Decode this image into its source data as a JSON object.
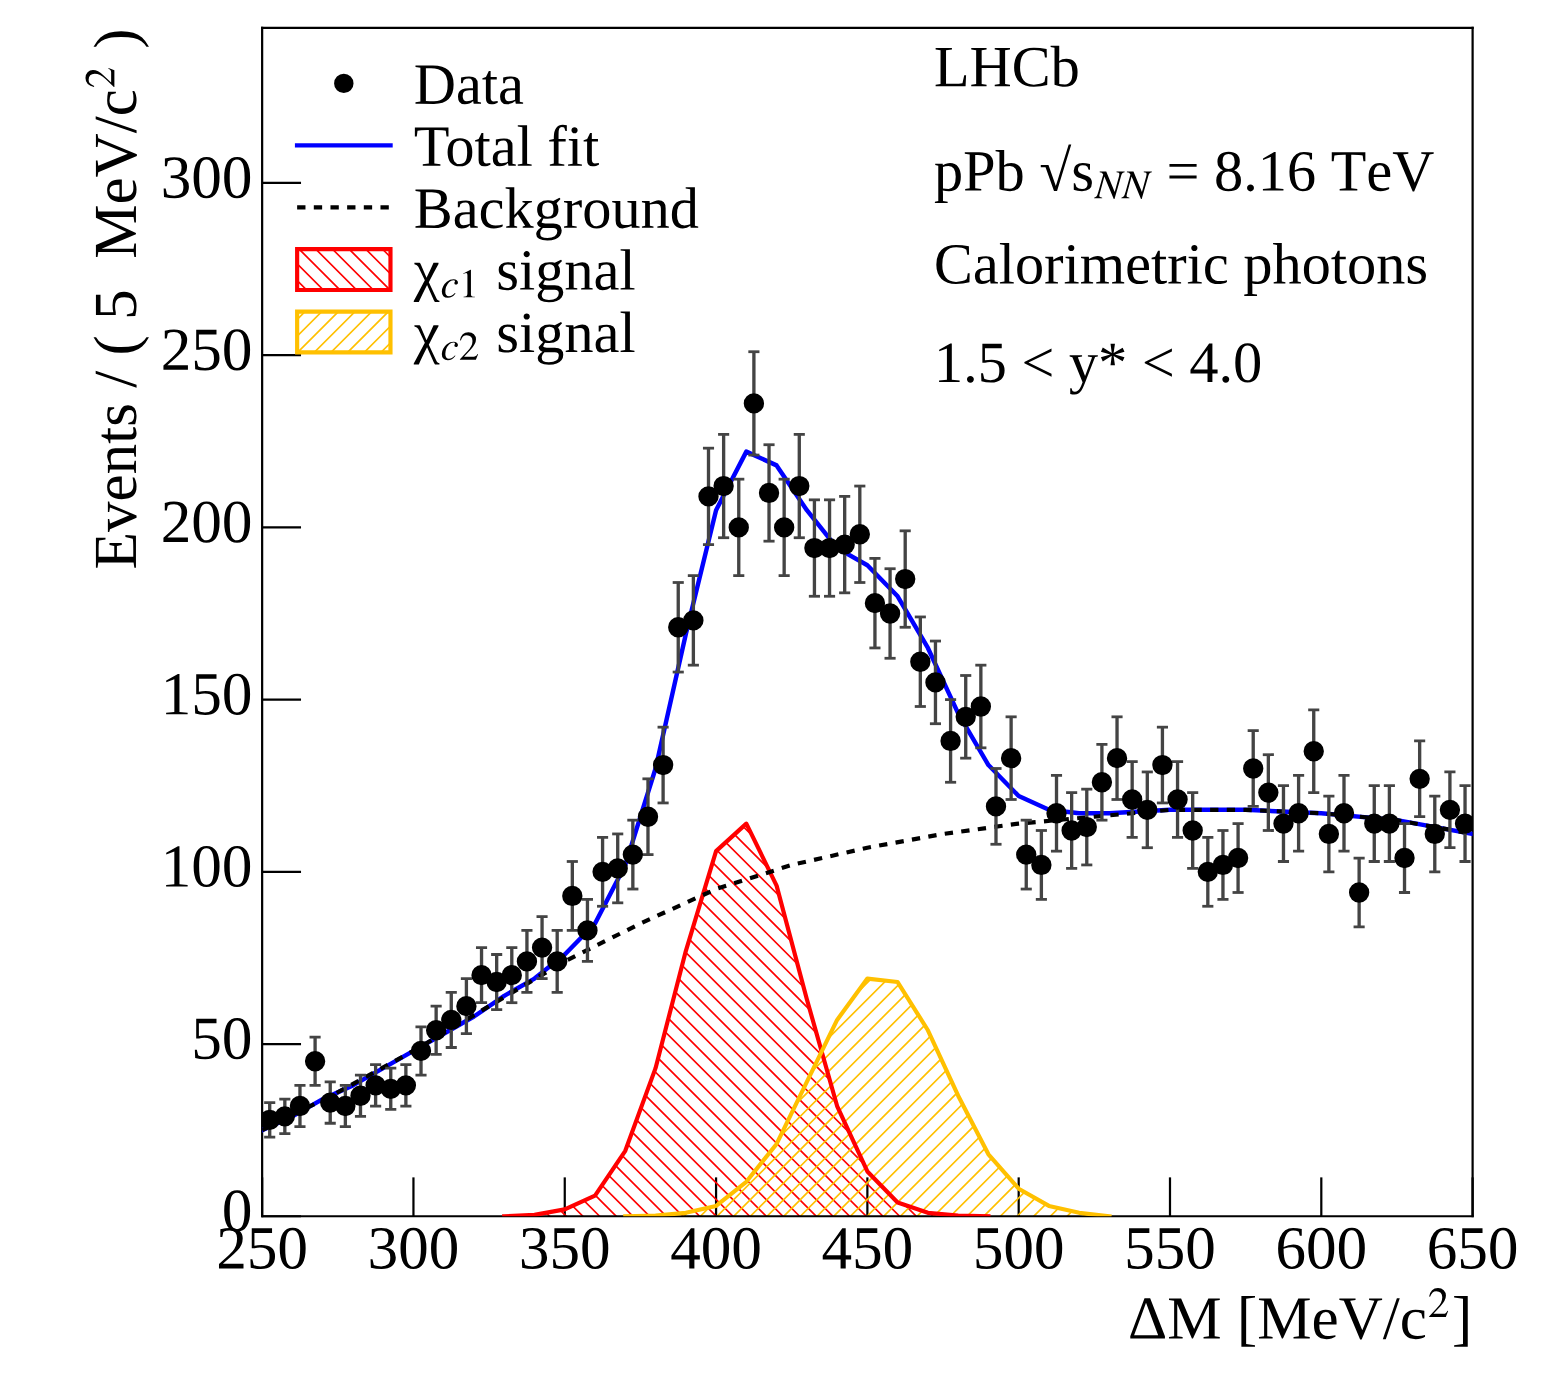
{
  "chart_data": {
    "type": "scatter",
    "xlabel": "ΔM [MeV/c$^{2}$]",
    "ylabel": "Events / ( 5  MeV/c$^{2}$ )",
    "xlim": [
      250,
      650
    ],
    "ylim": [
      0,
      345
    ],
    "xticks": [
      250,
      300,
      350,
      400,
      450,
      500,
      550,
      600,
      650
    ],
    "yticks": [
      0,
      50,
      100,
      150,
      200,
      250,
      300
    ],
    "grid": false,
    "legend": "top left",
    "annotations": [
      "LHCb",
      "pPb √s$_{NN}$ = 8.16 TeV",
      "Calorimetric photons",
      "1.5 < y* < 4.0"
    ],
    "series": [
      {
        "name": "Data",
        "marker": "circle",
        "color": "#000000",
        "x": [
          252.5,
          257.5,
          262.5,
          267.5,
          272.5,
          277.5,
          282.5,
          287.5,
          292.5,
          297.5,
          302.5,
          307.5,
          312.5,
          317.5,
          322.5,
          327.5,
          332.5,
          337.5,
          342.5,
          347.5,
          352.5,
          357.5,
          362.5,
          367.5,
          372.5,
          377.5,
          382.5,
          387.5,
          392.5,
          397.5,
          402.5,
          407.5,
          412.5,
          417.5,
          422.5,
          427.5,
          432.5,
          437.5,
          442.5,
          447.5,
          452.5,
          457.5,
          462.5,
          467.5,
          472.5,
          477.5,
          482.5,
          487.5,
          492.5,
          497.5,
          502.5,
          507.5,
          512.5,
          517.5,
          522.5,
          527.5,
          532.5,
          537.5,
          542.5,
          547.5,
          552.5,
          557.5,
          562.5,
          567.5,
          572.5,
          577.5,
          582.5,
          587.5,
          592.5,
          597.5,
          602.5,
          607.5,
          612.5,
          617.5,
          622.5,
          627.5,
          632.5,
          637.5,
          642.5,
          647.5
        ],
        "values": [
          28,
          29,
          32,
          45,
          33,
          32,
          35,
          38,
          37,
          38,
          48,
          54,
          57,
          61,
          70,
          68,
          70,
          74,
          78,
          74,
          93,
          83,
          100,
          101,
          105,
          116,
          131,
          171,
          173,
          209,
          212,
          200,
          236,
          210,
          200,
          212,
          194,
          194,
          195,
          198,
          178,
          175,
          185,
          161,
          155,
          138,
          145,
          148,
          119,
          133,
          105,
          102,
          117,
          112,
          113,
          126,
          133,
          121,
          118,
          131,
          121,
          112,
          100,
          102,
          104,
          130,
          123,
          114,
          117,
          135,
          111,
          117,
          94,
          114,
          114,
          104,
          127,
          111,
          118,
          114
        ],
        "errors": [
          5,
          5,
          6,
          7,
          6,
          6,
          6,
          6,
          6,
          6,
          7,
          7,
          8,
          8,
          8,
          8,
          8,
          9,
          9,
          9,
          10,
          9,
          10,
          10,
          10,
          11,
          11,
          13,
          13,
          14,
          15,
          14,
          15,
          14,
          14,
          15,
          14,
          14,
          14,
          14,
          13,
          13,
          14,
          13,
          12,
          12,
          12,
          12,
          11,
          12,
          10,
          10,
          11,
          11,
          11,
          11,
          12,
          11,
          11,
          11,
          11,
          11,
          10,
          10,
          10,
          11,
          11,
          11,
          11,
          12,
          11,
          11,
          10,
          11,
          11,
          10,
          11,
          11,
          11,
          11
        ]
      },
      {
        "name": "Total fit",
        "type": "line",
        "line_style": "solid",
        "color": "#0000ff",
        "x": [
          250,
          260,
          270,
          280,
          290,
          300,
          310,
          320,
          330,
          340,
          350,
          360,
          370,
          380,
          390,
          400,
          410,
          420,
          430,
          440,
          450,
          460,
          470,
          480,
          490,
          500,
          510,
          520,
          530,
          550,
          575,
          600,
          625,
          650
        ],
        "values": [
          25,
          29,
          34,
          38,
          43,
          48,
          53,
          58,
          64,
          69,
          76,
          85,
          102,
          130,
          169,
          205,
          222,
          218,
          205,
          194,
          189,
          180,
          165,
          146,
          131,
          122,
          118,
          117,
          117,
          118,
          118,
          117,
          115,
          111
        ]
      },
      {
        "name": "Background",
        "type": "line",
        "line_style": "dotted",
        "color": "#000000",
        "x": [
          250,
          275,
          300,
          325,
          350,
          375,
          400,
          425,
          450,
          475,
          500,
          525,
          550,
          575,
          600,
          625,
          650
        ],
        "values": [
          25,
          36,
          48,
          61,
          74,
          85,
          95,
          102,
          107,
          111,
          114,
          116,
          118,
          118,
          117,
          115,
          111
        ]
      },
      {
        "name": "χ$_{c1}$ signal",
        "type": "area",
        "color": "#ff0000",
        "x": [
          330,
          340,
          350,
          360,
          370,
          380,
          390,
          400,
          410,
          420,
          430,
          440,
          450,
          460,
          470,
          480,
          490
        ],
        "values": [
          0,
          0.4,
          2,
          6,
          19,
          43,
          77,
          106,
          114,
          96,
          63,
          32,
          13,
          4,
          1,
          0.2,
          0
        ]
      },
      {
        "name": "χ$_{c2}$ signal",
        "type": "area",
        "color": "#ffc000",
        "x": [
          370,
          380,
          390,
          400,
          410,
          420,
          430,
          440,
          450,
          460,
          470,
          480,
          490,
          500,
          510,
          520,
          530
        ],
        "values": [
          0,
          0.2,
          1,
          3,
          10,
          21,
          39,
          57,
          69,
          68,
          54,
          35,
          18,
          8,
          3,
          1,
          0
        ]
      }
    ]
  }
}
